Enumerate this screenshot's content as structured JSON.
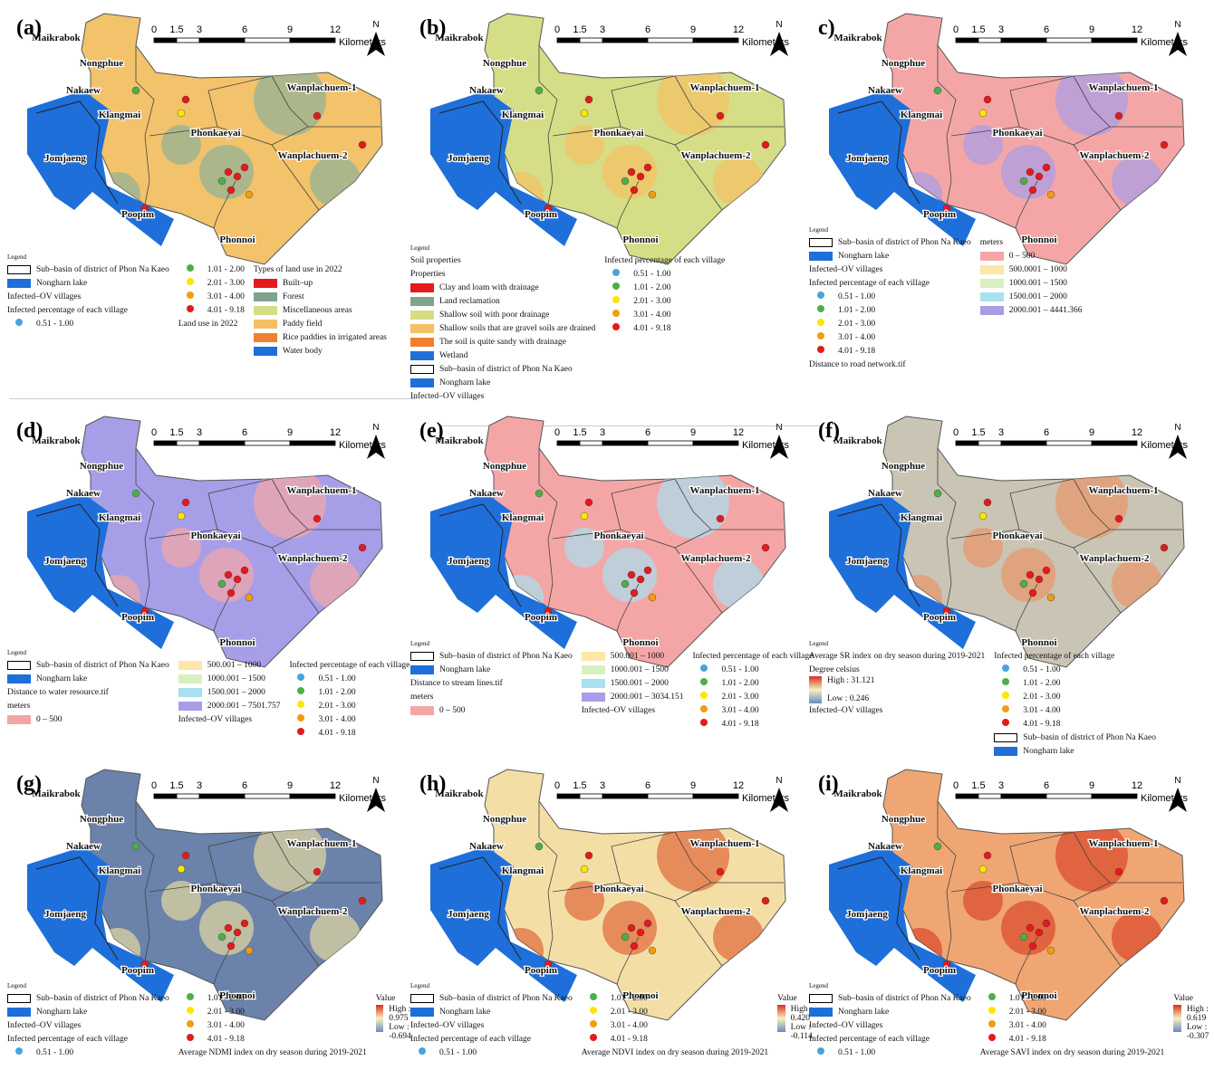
{
  "villages": [
    "Maikrabok",
    "Nongphue",
    "Nakaew",
    "Klangmai",
    "Wanplachuem-1",
    "Phonkaeyai",
    "Wanplachuem-2",
    "Jomjaeng",
    "Poopim",
    "Phonnoi"
  ],
  "scale_bar": {
    "ticks": [
      0,
      1.5,
      3,
      6,
      9,
      12
    ],
    "unit": "Kilometers"
  },
  "north": "N",
  "panels": [
    {
      "label": "(a)",
      "legend_title": "Legend",
      "map_color": "#f2c36a",
      "accent": "#8fb09a",
      "legend": [
        [
          {
            "text": "Sub–basin of district of Phon Na Kaeo",
            "outline": true
          },
          {
            "text": "Nongharn lake",
            "fill": "#1e6fd9"
          },
          {
            "text": "Infected–OV villages"
          },
          {
            "text": "Infected percentage of each village"
          },
          {
            "text": "0.51 - 1.00",
            "dot": "#4aa3df"
          }
        ],
        [
          {
            "text": "1.01 - 2.00",
            "dot": "#4daf4a"
          },
          {
            "text": "2.01 - 3.00",
            "dot": "#ffe600"
          },
          {
            "text": "3.01 - 4.00",
            "dot": "#f39c12"
          },
          {
            "text": "4.01 - 9.18",
            "dot": "#e41a1c"
          },
          {
            "text": "Land use in 2022"
          }
        ],
        [
          {
            "text": "Types of land use in 2022"
          },
          {
            "text": "Built–up",
            "fill": "#e41a1c"
          },
          {
            "text": "Forest",
            "fill": "#7fa38d"
          },
          {
            "text": "Miscellaneous areas",
            "fill": "#d5dd86"
          },
          {
            "text": "Paddy field",
            "fill": "#f5c063"
          },
          {
            "text": "Rice paddies in irrigated areas",
            "fill": "#f08030"
          },
          {
            "text": "Water body",
            "fill": "#1e6fd9"
          }
        ]
      ]
    },
    {
      "label": "(b)",
      "legend_title": "Legend",
      "map_color": "#d5dd86",
      "accent": "#f5c063",
      "legend": [
        [
          {
            "text": "Soil properties"
          },
          {
            "text": "Properties"
          },
          {
            "text": "Clay and loam with drainage",
            "fill": "#e41a1c"
          },
          {
            "text": "Land reclamation",
            "fill": "#7fa38d"
          },
          {
            "text": "Shallow soil with poor drainage",
            "fill": "#d5dd86"
          },
          {
            "text": "Shallow soils that are gravel soils are drained",
            "fill": "#f5c063"
          },
          {
            "text": "The soil is quite sandy with drainage",
            "fill": "#f08030"
          },
          {
            "text": "Wetland",
            "fill": "#1e6fd9"
          },
          {
            "text": "Sub–basin of district of Phon Na Kaeo",
            "outline": true
          },
          {
            "text": "Nongharn lake",
            "fill": "#1e6fd9"
          },
          {
            "text": "Infected–OV villages"
          }
        ],
        [
          {
            "text": "Infected percentage of each village"
          },
          {
            "text": "0.51 - 1.00",
            "dot": "#4aa3df"
          },
          {
            "text": "1.01 - 2.00",
            "dot": "#4daf4a"
          },
          {
            "text": "2.01 - 3.00",
            "dot": "#ffe600"
          },
          {
            "text": "3.01 - 4.00",
            "dot": "#f39c12"
          },
          {
            "text": "4.01 - 9.18",
            "dot": "#e41a1c"
          }
        ]
      ]
    },
    {
      "label": "c)",
      "legend_title": "Legend",
      "map_color": "#f4a6a6",
      "accent": "#a79ee8",
      "legend": [
        [
          {
            "text": "Sub–basin of district of Phon Na Kaeo",
            "outline": true
          },
          {
            "text": "Nongharn lake",
            "fill": "#1e6fd9"
          },
          {
            "text": "Infected–OV villages"
          },
          {
            "text": "Infected percentage of each village"
          },
          {
            "text": "0.51 - 1.00",
            "dot": "#4aa3df"
          },
          {
            "text": "1.01 - 2.00",
            "dot": "#4daf4a"
          },
          {
            "text": "2.01 - 3.00",
            "dot": "#ffe600"
          },
          {
            "text": "3.01 - 4.00",
            "dot": "#f39c12"
          },
          {
            "text": "4.01 - 9.18",
            "dot": "#e41a1c"
          },
          {
            "text": "Distance to road network.tif"
          }
        ],
        [
          {
            "text": "meters"
          },
          {
            "text": "0 – 500",
            "fill": "#f4a6a6"
          },
          {
            "text": "500.0001 – 1000",
            "fill": "#fde6a6"
          },
          {
            "text": "1000.001 – 1500",
            "fill": "#d8f0c0"
          },
          {
            "text": "1500.001 – 2000",
            "fill": "#a8e0f0"
          },
          {
            "text": "2000.001 – 4441.366",
            "fill": "#a79ee8"
          }
        ]
      ]
    },
    {
      "label": "(d)",
      "legend_title": "Legend",
      "map_color": "#a79ee8",
      "accent": "#f4a6a6",
      "legend": [
        [
          {
            "text": "Sub–basin of district of Phon Na Kaeo",
            "outline": true
          },
          {
            "text": "Nongharn lake",
            "fill": "#1e6fd9"
          },
          {
            "text": "Distance to water resource.tif"
          },
          {
            "text": "meters"
          },
          {
            "text": "0  –  500",
            "fill": "#f4a6a6"
          }
        ],
        [
          {
            "text": "500.001  –  1000",
            "fill": "#fde6a6"
          },
          {
            "text": "1000.001  –  1500",
            "fill": "#d8f0c0"
          },
          {
            "text": "1500.001  –  2000",
            "fill": "#a8e0f0"
          },
          {
            "text": "2000.001  –  7501.757",
            "fill": "#a79ee8"
          },
          {
            "text": "Infected–OV villages"
          }
        ],
        [
          {
            "text": "Infected percentage of each village"
          },
          {
            "text": "0.51 - 1.00",
            "dot": "#4aa3df"
          },
          {
            "text": "1.01 - 2.00",
            "dot": "#4daf4a"
          },
          {
            "text": "2.01 - 3.00",
            "dot": "#ffe600"
          },
          {
            "text": "3.01 - 4.00",
            "dot": "#f39c12"
          },
          {
            "text": "4.01 - 9.18",
            "dot": "#e41a1c"
          }
        ]
      ]
    },
    {
      "label": "(e)",
      "legend_title": "Legend",
      "map_color": "#f4a6a6",
      "accent": "#a8e0f0",
      "legend": [
        [
          {
            "text": "Sub–basin of district of Phon Na Kaeo",
            "outline": true
          },
          {
            "text": "Nongharn lake",
            "fill": "#1e6fd9"
          },
          {
            "text": "Distance to stream lines.tif"
          },
          {
            "text": "meters"
          },
          {
            "text": "0 – 500",
            "fill": "#f4a6a6"
          }
        ],
        [
          {
            "text": "500.001 – 1000",
            "fill": "#fde6a6"
          },
          {
            "text": "1000.001 – 1500",
            "fill": "#d8f0c0"
          },
          {
            "text": "1500.001 – 2000",
            "fill": "#a8e0f0"
          },
          {
            "text": "2000.001 – 3034.151",
            "fill": "#a79ee8"
          },
          {
            "text": "Infected–OV villages"
          }
        ],
        [
          {
            "text": "Infected percentage of each village"
          },
          {
            "text": "0.51 - 1.00",
            "dot": "#4aa3df"
          },
          {
            "text": "1.01 - 2.00",
            "dot": "#4daf4a"
          },
          {
            "text": "2.01 - 3.00",
            "dot": "#ffe600"
          },
          {
            "text": "3.01 - 4.00",
            "dot": "#f39c12"
          },
          {
            "text": "4.01 - 9.18",
            "dot": "#e41a1c"
          }
        ]
      ]
    },
    {
      "label": "(f)",
      "legend_title": "Legend",
      "map_color": "#c9c4b4",
      "accent": "#e8956a",
      "legend": [
        [
          {
            "text": "Average SR index on dry season during 2019-2021"
          },
          {
            "text": "Degree celsius"
          },
          {
            "high": "High : 31.121",
            "low": "Low : 0.246",
            "ramp": [
              "#d7301f",
              "#f7f0c0",
              "#6b8ac0"
            ]
          },
          {
            "text": "Infected–OV villages"
          }
        ],
        [
          {
            "text": "Infected percentage of each village"
          },
          {
            "text": "0.51 - 1.00",
            "dot": "#4aa3df"
          },
          {
            "text": "1.01 - 2.00",
            "dot": "#4daf4a"
          },
          {
            "text": "2.01 - 3.00",
            "dot": "#ffe600"
          },
          {
            "text": "3.01 - 4.00",
            "dot": "#f39c12"
          },
          {
            "text": "4.01 - 9.18",
            "dot": "#e41a1c"
          },
          {
            "text": "Sub–basin of district of Phon Na Kaeo",
            "outline": true
          },
          {
            "text": "Nongharn lake",
            "fill": "#1e6fd9"
          }
        ]
      ]
    },
    {
      "label": "(g)",
      "legend_title": "Legend",
      "map_color": "#6b82ab",
      "accent": "#e6d9a0",
      "legend": [
        [
          {
            "text": "Sub–basin of district of Phon Na Kaeo",
            "outline": true
          },
          {
            "text": "Nongharn lake",
            "fill": "#1e6fd9"
          },
          {
            "text": "Infected–OV villages"
          },
          {
            "text": "Infected percentage of each village"
          },
          {
            "text": "0.51 - 1.00",
            "dot": "#4aa3df"
          }
        ],
        [
          {
            "text": "1.01 - 2.00",
            "dot": "#4daf4a"
          },
          {
            "text": "2.01 - 3.00",
            "dot": "#ffe600"
          },
          {
            "text": "3.01 - 4.00",
            "dot": "#f39c12"
          },
          {
            "text": "4.01 - 9.18",
            "dot": "#e41a1c"
          },
          {
            "text": "Average NDMI index on dry season during 2019-2021"
          }
        ],
        [
          {
            "text": "Value"
          },
          {
            "high": "High : 0.975",
            "low": "Low : -0.694",
            "ramp": [
              "#d7301f",
              "#f7f0c0",
              "#6b8ac0"
            ]
          }
        ]
      ]
    },
    {
      "label": "(h)",
      "legend_title": "Legend",
      "map_color": "#f3dfa6",
      "accent": "#e0663a",
      "legend": [
        [
          {
            "text": "Sub–basin of district of Phon Na Kaeo",
            "outline": true
          },
          {
            "text": "Nongharn lake",
            "fill": "#1e6fd9"
          },
          {
            "text": "Infected–OV villages"
          },
          {
            "text": "Infected percentage of each village"
          },
          {
            "text": "0.51 - 1.00",
            "dot": "#4aa3df"
          }
        ],
        [
          {
            "text": "1.01 - 2.00",
            "dot": "#4daf4a"
          },
          {
            "text": "2.01 - 3.00",
            "dot": "#ffe600"
          },
          {
            "text": "3.01 - 4.00",
            "dot": "#f39c12"
          },
          {
            "text": "4.01 - 9.18",
            "dot": "#e41a1c"
          },
          {
            "text": "Average NDVI index on dry season during 2019-2021"
          }
        ],
        [
          {
            "text": "Value"
          },
          {
            "high": "High : 0.420",
            "low": "Low : -0.114",
            "ramp": [
              "#d7301f",
              "#f7f0c0",
              "#6b8ac0"
            ]
          }
        ]
      ]
    },
    {
      "label": "(i)",
      "legend_title": "Legend",
      "map_color": "#f0a672",
      "accent": "#d9482a",
      "legend": [
        [
          {
            "text": "Sub–basin of district of Phon Na Kaeo",
            "outline": true
          },
          {
            "text": "Nongharn lake",
            "fill": "#1e6fd9"
          },
          {
            "text": "Infected–OV villages"
          },
          {
            "text": "Infected percentage of each village"
          },
          {
            "text": "0.51 - 1.00",
            "dot": "#4aa3df"
          }
        ],
        [
          {
            "text": "1.01 - 2.00",
            "dot": "#4daf4a"
          },
          {
            "text": "2.01 - 3.00",
            "dot": "#ffe600"
          },
          {
            "text": "3.01 - 4.00",
            "dot": "#f39c12"
          },
          {
            "text": "4.01 - 9.18",
            "dot": "#e41a1c"
          },
          {
            "text": "Average SAVI index on dry season during 2019-2021"
          }
        ],
        [
          {
            "text": "Value"
          },
          {
            "high": "High : 0.619",
            "low": "Low : -0.307",
            "ramp": [
              "#d7301f",
              "#f7f0c0",
              "#6b8ac0"
            ]
          }
        ]
      ]
    }
  ]
}
